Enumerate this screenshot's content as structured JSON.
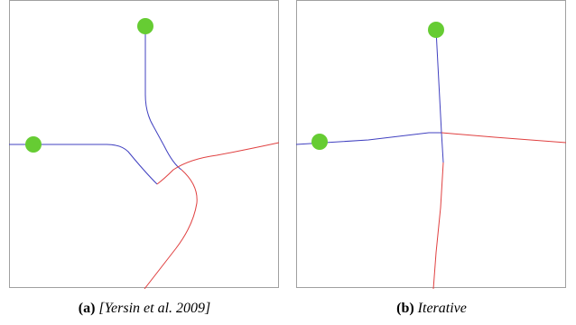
{
  "figure": {
    "panels": [
      {
        "tag": "(a)",
        "caption": "[Yersin et al. 2009]"
      },
      {
        "tag": "(b)",
        "caption": "Iterative"
      }
    ]
  },
  "colors": {
    "frame": "#a0a0a0",
    "path_blue": "#4040c0",
    "path_red": "#e04040",
    "agent": "#66cc33"
  }
}
